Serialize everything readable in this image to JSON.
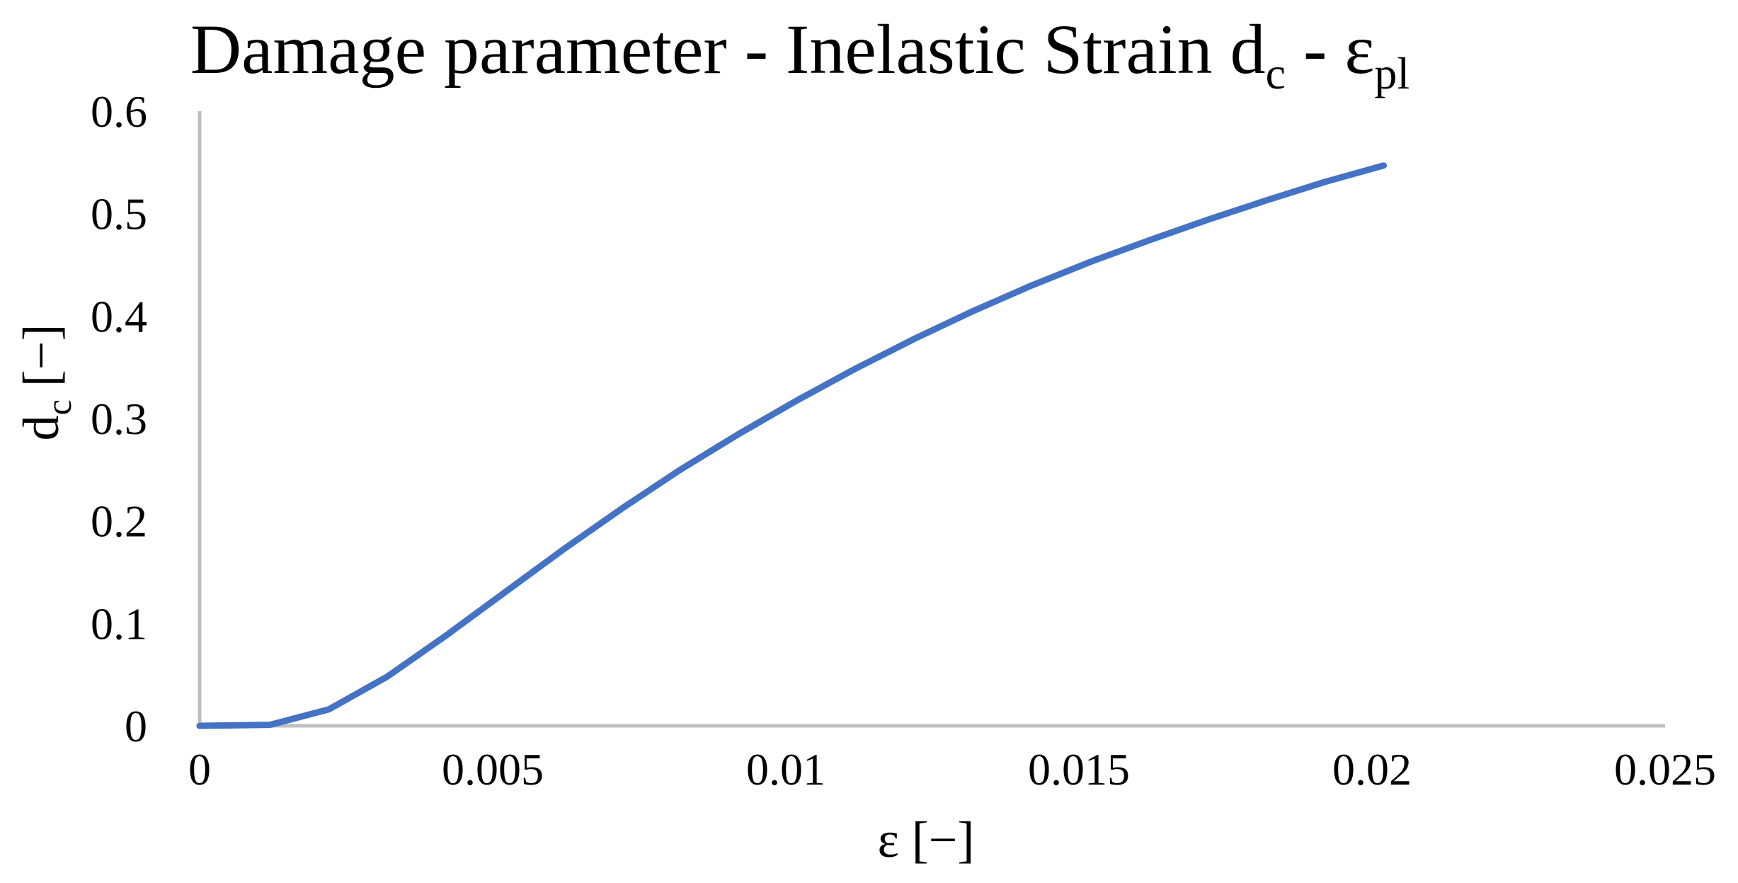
{
  "chart_data": {
    "type": "line",
    "title": {
      "main": "Damage parameter - Inelastic Strain d",
      "sub1": "c",
      "mid": " - ε",
      "sub2": "pl"
    },
    "xlabel": "ε [−]",
    "ylabel": {
      "base": "d",
      "sub": "c",
      "rest": " [−]"
    },
    "xlim": [
      0,
      0.025
    ],
    "ylim": [
      0,
      0.6
    ],
    "x_ticks": [
      0,
      0.005,
      0.01,
      0.015,
      0.02,
      0.025
    ],
    "x_tick_labels": [
      "0",
      "0.005",
      "0.01",
      "0.015",
      "0.02",
      "0.025"
    ],
    "y_ticks": [
      0,
      0.1,
      0.2,
      0.3,
      0.4,
      0.5,
      0.6
    ],
    "y_tick_labels": [
      "0",
      "0.1",
      "0.2",
      "0.3",
      "0.4",
      "0.5",
      "0.6"
    ],
    "grid": false,
    "legend": "none",
    "series": [
      {
        "color": "#4472C4",
        "x": [
          0,
          0.0012,
          0.0022,
          0.0032,
          0.0042,
          0.0052,
          0.0062,
          0.0072,
          0.0082,
          0.0092,
          0.0102,
          0.0112,
          0.0122,
          0.0132,
          0.0142,
          0.0152,
          0.0162,
          0.0172,
          0.0182,
          0.0192,
          0.0202
        ],
        "values": [
          0,
          0.001,
          0.016,
          0.048,
          0.088,
          0.13,
          0.172,
          0.212,
          0.25,
          0.285,
          0.318,
          0.349,
          0.378,
          0.405,
          0.43,
          0.453,
          0.474,
          0.494,
          0.513,
          0.531,
          0.547
        ]
      }
    ],
    "axis_color": "#BFBFBF"
  }
}
